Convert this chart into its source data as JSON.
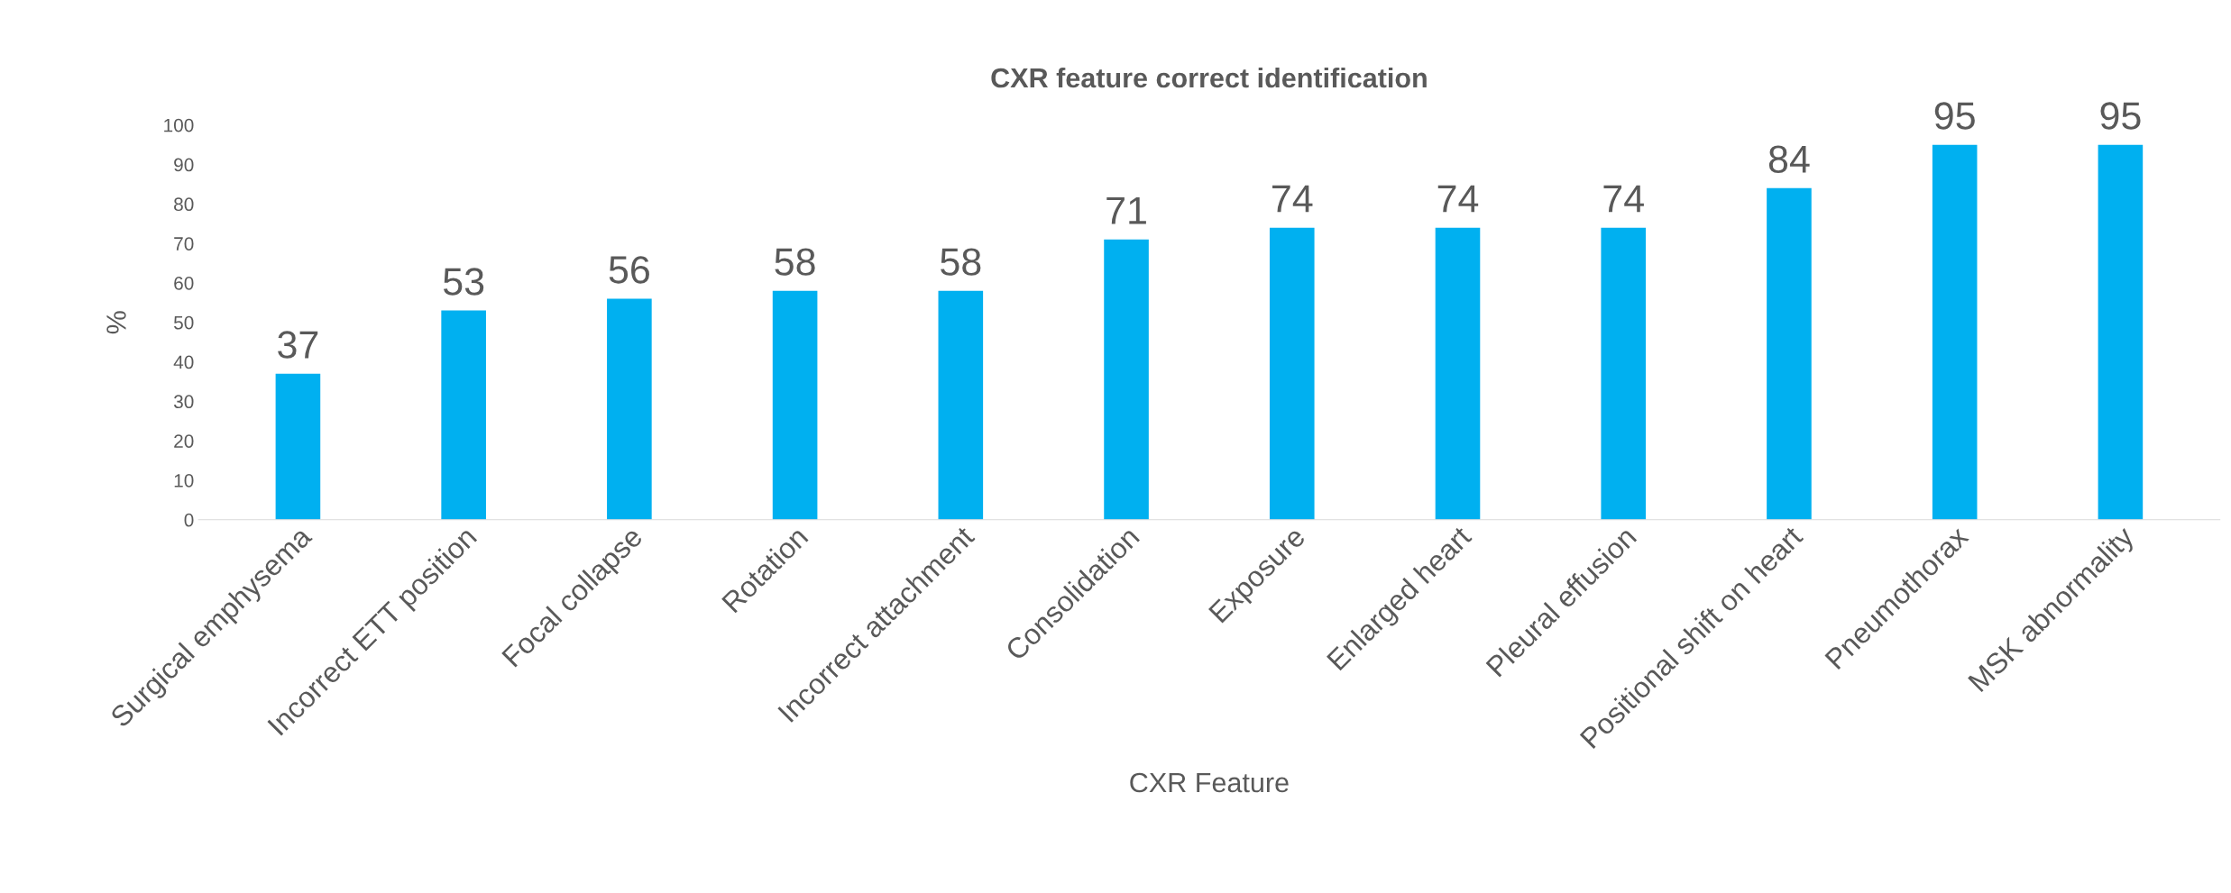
{
  "chart_data": {
    "type": "bar",
    "title": "CXR feature correct identification",
    "xlabel": "CXR Feature",
    "ylabel": "%",
    "categories": [
      "Surgical emphysema",
      "Incorrect ETT position",
      "Focal collapse",
      "Rotation",
      "Incorrect attachment",
      "Consolidation",
      "Exposure",
      "Enlarged heart",
      "Pleural effusion",
      "Positional shift on heart",
      "Pneumothorax",
      "MSK abnormality"
    ],
    "values": [
      37,
      53,
      56,
      58,
      58,
      71,
      74,
      74,
      74,
      84,
      95,
      95
    ],
    "color": "#00b0f0",
    "ylim": [
      0,
      100
    ],
    "yticks": [
      0,
      10,
      20,
      30,
      40,
      50,
      60,
      70,
      80,
      90,
      100
    ],
    "grid": false,
    "data_labels": true
  }
}
